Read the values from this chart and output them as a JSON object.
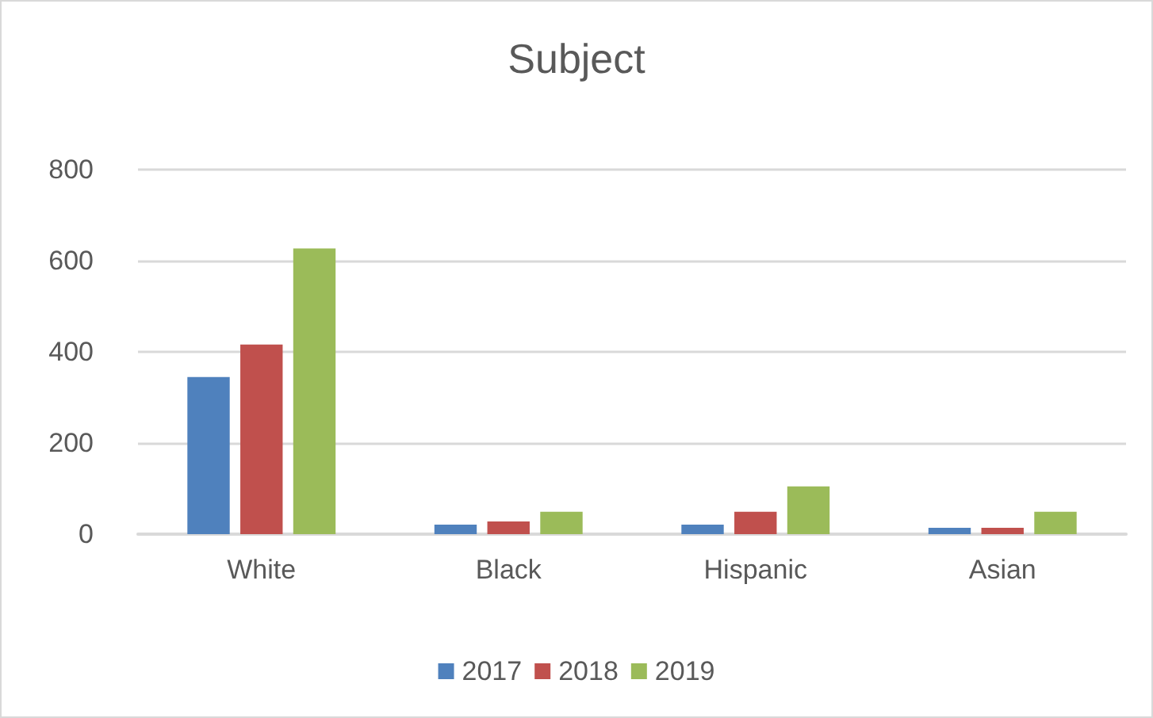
{
  "chart_data": {
    "type": "bar",
    "title": "Subject",
    "categories": [
      "White",
      "Black",
      "Hispanic",
      "Asian"
    ],
    "series": [
      {
        "name": "2017",
        "color": "#4f81bd",
        "values": [
          345,
          21,
          21,
          14
        ]
      },
      {
        "name": "2018",
        "color": "#c0504d",
        "values": [
          416,
          28,
          49,
          14
        ]
      },
      {
        "name": "2019",
        "color": "#9bbb59",
        "values": [
          627,
          49,
          105,
          49
        ]
      }
    ],
    "ylim": [
      0,
      800
    ],
    "yticks": [
      0,
      200,
      400,
      600,
      800
    ],
    "grid": "y",
    "legend": "bottom"
  }
}
